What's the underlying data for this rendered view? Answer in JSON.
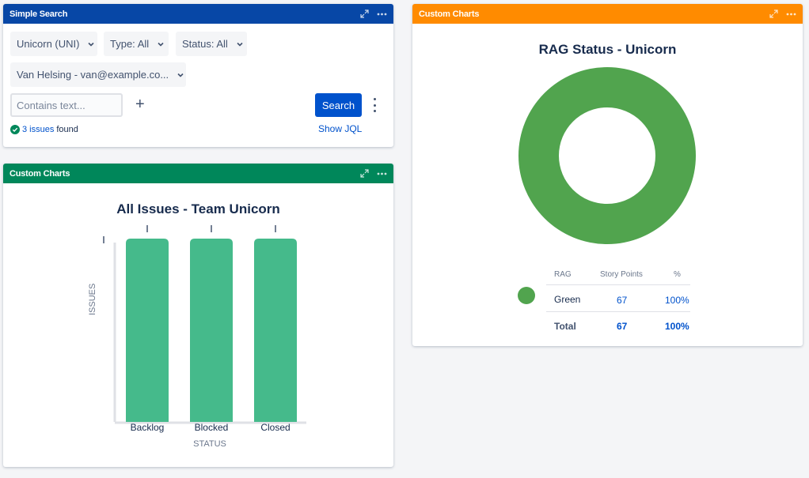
{
  "search_gadget": {
    "title": "Simple Search",
    "project_dropdown": "Unicorn (UNI)",
    "type_dropdown": "Type: All",
    "status_dropdown": "Status: All",
    "assignee_dropdown": "Van Helsing - van@example.co...",
    "text_placeholder": "Contains text...",
    "search_button": "Search",
    "result_count_link": "3 issues",
    "result_suffix": "found",
    "show_jql": "Show JQL"
  },
  "bar_gadget": {
    "header": "Custom Charts",
    "chart_data": {
      "type": "bar",
      "title": "All Issues - Team Unicorn",
      "xlabel": "STATUS",
      "ylabel": "ISSUES",
      "categories": [
        "Backlog",
        "Blocked",
        "Closed"
      ],
      "values": [
        1,
        1,
        1
      ],
      "color": "#45ba8b"
    }
  },
  "rag_gadget": {
    "header": "Custom Charts",
    "chart_data": {
      "type": "pie",
      "title": "RAG Status - Unicorn",
      "categories": [
        "Green"
      ],
      "values": [
        67
      ],
      "color": "#51a44e"
    },
    "table": {
      "headers": [
        "RAG",
        "Story Points",
        "%"
      ],
      "rows": [
        {
          "label": "Green",
          "points": "67",
          "pct": "100%"
        }
      ],
      "total": {
        "label": "Total",
        "points": "67",
        "pct": "100%"
      }
    }
  }
}
